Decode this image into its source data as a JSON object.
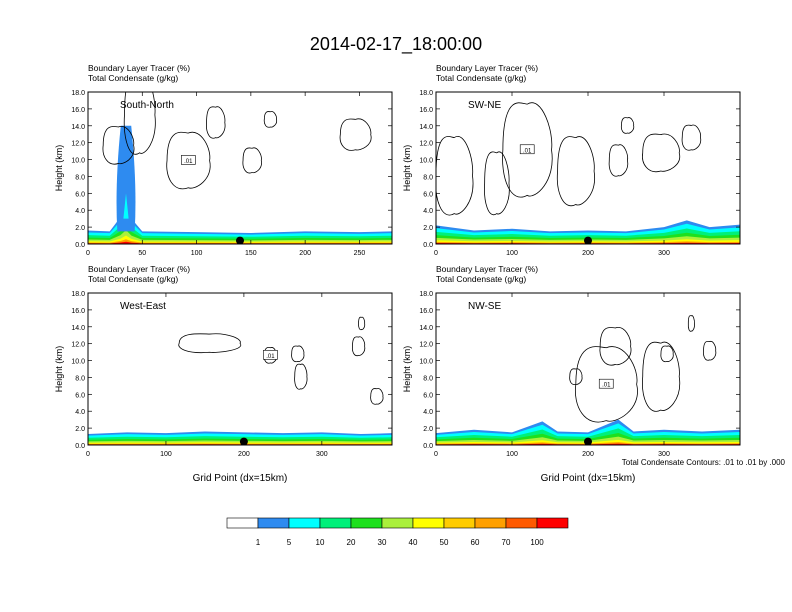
{
  "figure": {
    "title": "2014-02-17_18:00:00",
    "contour_note": "Total Condensate Contours: .01 to .01 by .000",
    "xlabel": "Grid Point (dx=15km)"
  },
  "colorbar": {
    "colors": [
      "#ffffff",
      "#2e8bf0",
      "#00ffff",
      "#00f07a",
      "#1ee01e",
      "#aaf03c",
      "#ffff00",
      "#ffcc00",
      "#ffa000",
      "#ff5a00",
      "#ff0000"
    ],
    "labels": [
      "1",
      "5",
      "10",
      "20",
      "30",
      "40",
      "50",
      "60",
      "70",
      "100"
    ]
  },
  "chart_data": [
    {
      "type": "area",
      "panel": "South-North",
      "label_top": "Boundary Layer Tracer   (%)",
      "label_bottom": "Total Condensate   (g/kg)",
      "ylabel": "Height (km)",
      "xlabel": "",
      "xlim": [
        0,
        280
      ],
      "ylim": [
        0,
        18
      ],
      "xticks": [
        0,
        50,
        100,
        150,
        200,
        250
      ],
      "yticks": [
        0,
        2,
        4,
        6,
        8,
        10,
        12,
        14,
        16,
        18
      ],
      "ytick_labels": [
        "0.0",
        "2.0",
        "4.0",
        "6.0",
        "8.0",
        "10.0",
        "12.0",
        "14.0",
        "16.0",
        "18.0"
      ],
      "pbl_top_km": [
        [
          0,
          1.6
        ],
        [
          20,
          1.5
        ],
        [
          30,
          3.2
        ],
        [
          35,
          5.0
        ],
        [
          40,
          3.0
        ],
        [
          50,
          1.5
        ],
        [
          100,
          1.4
        ],
        [
          150,
          1.3
        ],
        [
          200,
          1.5
        ],
        [
          250,
          1.4
        ],
        [
          280,
          1.5
        ]
      ],
      "plume": {
        "x_center": 35,
        "width": 8,
        "top_km": 14
      },
      "marker_x": 140,
      "contour_label": ".01"
    },
    {
      "type": "area",
      "panel": "SW-NE",
      "label_top": "Boundary Layer Tracer   (%)",
      "label_bottom": "Total Condensate   (g/kg)",
      "ylabel": "Height (km)",
      "xlabel": "",
      "xlim": [
        0,
        400
      ],
      "ylim": [
        0,
        18
      ],
      "xticks": [
        0,
        100,
        200,
        300
      ],
      "yticks": [
        0,
        2,
        4,
        6,
        8,
        10,
        12,
        14,
        16,
        18
      ],
      "ytick_labels": [
        "0.0",
        "2.0",
        "4.0",
        "6.0",
        "8.0",
        "10.0",
        "12.0",
        "14.0",
        "16.0",
        "18.0"
      ],
      "pbl_top_km": [
        [
          0,
          2.2
        ],
        [
          50,
          1.6
        ],
        [
          100,
          1.8
        ],
        [
          150,
          1.5
        ],
        [
          200,
          1.6
        ],
        [
          250,
          1.5
        ],
        [
          300,
          2.0
        ],
        [
          330,
          2.8
        ],
        [
          360,
          2.0
        ],
        [
          400,
          2.3
        ]
      ],
      "plume": null,
      "marker_x": 200,
      "contour_label": ".01"
    },
    {
      "type": "area",
      "panel": "West-East",
      "label_top": "Boundary Layer Tracer   (%)",
      "label_bottom": "Total Condensate   (g/kg)",
      "ylabel": "Height (km)",
      "xlabel": "Grid Point (dx=15km)",
      "xlim": [
        0,
        390
      ],
      "ylim": [
        0,
        18
      ],
      "xticks": [
        0,
        100,
        200,
        300
      ],
      "yticks": [
        0,
        2,
        4,
        6,
        8,
        10,
        12,
        14,
        16,
        18
      ],
      "ytick_labels": [
        "0.0",
        "2.0",
        "4.0",
        "6.0",
        "8.0",
        "10.0",
        "12.0",
        "14.0",
        "16.0",
        "18.0"
      ],
      "pbl_top_km": [
        [
          0,
          1.3
        ],
        [
          50,
          1.5
        ],
        [
          100,
          1.4
        ],
        [
          150,
          1.6
        ],
        [
          200,
          1.5
        ],
        [
          250,
          1.4
        ],
        [
          300,
          1.5
        ],
        [
          350,
          1.3
        ],
        [
          390,
          1.4
        ]
      ],
      "plume": null,
      "marker_x": 200,
      "contour_label": ".01"
    },
    {
      "type": "area",
      "panel": "NW-SE",
      "label_top": "Boundary Layer Tracer   (%)",
      "label_bottom": "Total Condensate   (g/kg)",
      "ylabel": "Height (km)",
      "xlabel": "Grid Point (dx=15km)",
      "xlim": [
        0,
        400
      ],
      "ylim": [
        0,
        18
      ],
      "xticks": [
        0,
        100,
        200,
        300
      ],
      "yticks": [
        0,
        2,
        4,
        6,
        8,
        10,
        12,
        14,
        16,
        18
      ],
      "ytick_labels": [
        "0.0",
        "2.0",
        "4.0",
        "6.0",
        "8.0",
        "10.0",
        "12.0",
        "14.0",
        "16.0",
        "18.0"
      ],
      "pbl_top_km": [
        [
          0,
          1.4
        ],
        [
          50,
          1.8
        ],
        [
          100,
          1.5
        ],
        [
          140,
          2.8
        ],
        [
          160,
          1.6
        ],
        [
          200,
          1.5
        ],
        [
          240,
          3.0
        ],
        [
          260,
          1.6
        ],
        [
          300,
          1.8
        ],
        [
          350,
          1.6
        ],
        [
          400,
          1.8
        ]
      ],
      "plume": null,
      "marker_x": 200,
      "contour_label": ".01"
    }
  ]
}
